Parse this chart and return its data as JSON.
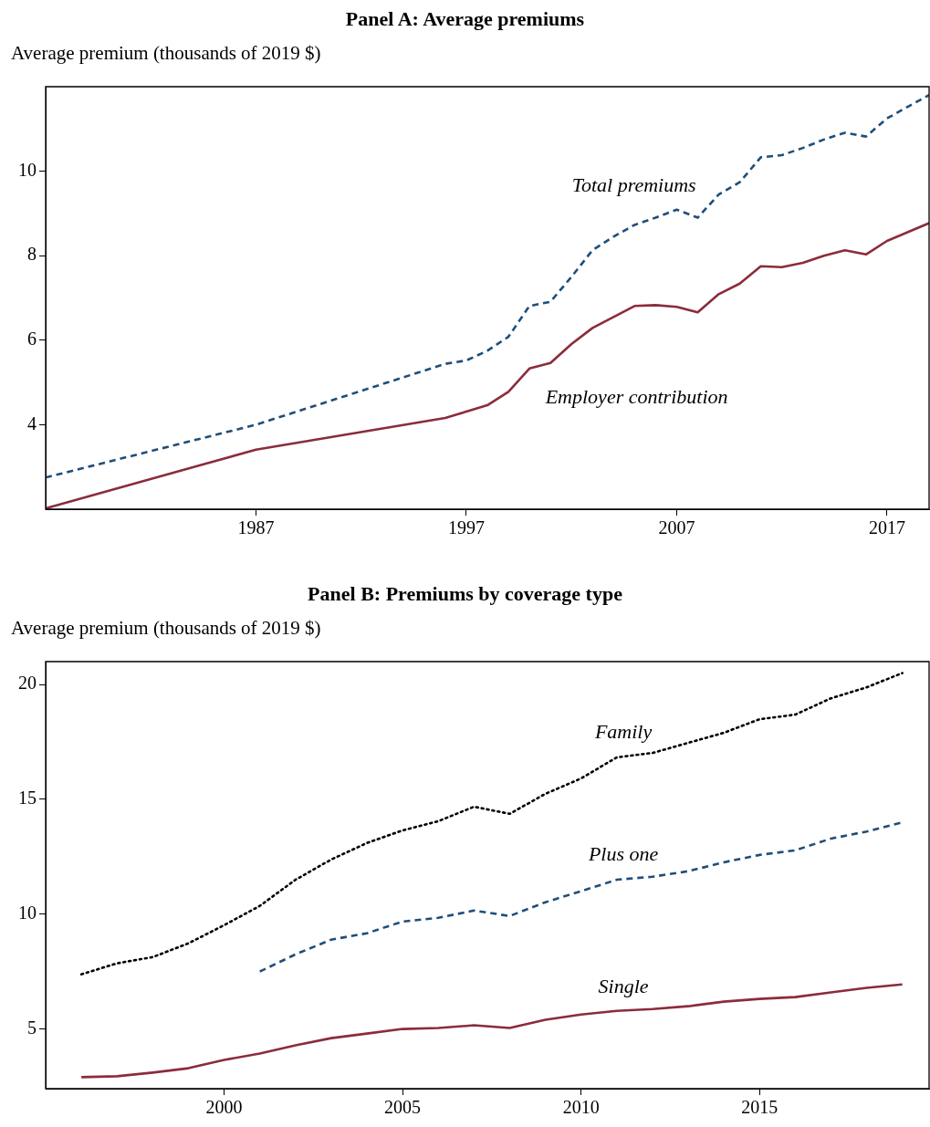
{
  "chart_data": [
    {
      "type": "line",
      "title": "Panel A: Average premiums",
      "ylabel": "Average premium (thousands of 2019 $)",
      "xlim": [
        1977,
        2019
      ],
      "xticks": [
        1987,
        1997,
        2007,
        2017
      ],
      "ylim": [
        2,
        12
      ],
      "yticks": [
        4,
        6,
        8,
        10
      ],
      "grid": false,
      "legend": false,
      "marker": "none",
      "series": [
        {
          "name": "Total premiums",
          "color": "#1f4e79",
          "line_style": "dashed",
          "x": [
            1977,
            1987,
            1996,
            1997,
            1998,
            1999,
            2000,
            2001,
            2002,
            2003,
            2004,
            2005,
            2006,
            2007,
            2008,
            2009,
            2010,
            2011,
            2012,
            2013,
            2014,
            2015,
            2016,
            2017,
            2018,
            2019
          ],
          "values": [
            2.75,
            4.0,
            5.44,
            5.52,
            5.75,
            6.08,
            6.81,
            6.91,
            7.5,
            8.13,
            8.45,
            8.73,
            8.9,
            9.09,
            8.9,
            9.45,
            9.74,
            10.33,
            10.38,
            10.55,
            10.75,
            10.91,
            10.82,
            11.25,
            11.53,
            11.8
          ]
        },
        {
          "name": "Employer contribution",
          "color": "#8b2c3a",
          "line_style": "solid",
          "x": [
            1977,
            1987,
            1996,
            1997,
            1998,
            1999,
            2000,
            2001,
            2002,
            2003,
            2004,
            2005,
            2006,
            2007,
            2008,
            2009,
            2010,
            2011,
            2012,
            2013,
            2014,
            2015,
            2016,
            2017,
            2018,
            2019
          ],
          "values": [
            2.02,
            3.41,
            4.16,
            4.31,
            4.46,
            4.78,
            5.33,
            5.46,
            5.91,
            6.29,
            6.55,
            6.81,
            6.83,
            6.79,
            6.66,
            7.09,
            7.34,
            7.75,
            7.73,
            7.83,
            8.0,
            8.13,
            8.03,
            8.35,
            8.56,
            8.77
          ]
        }
      ]
    },
    {
      "type": "line",
      "title": "Panel B: Premiums by coverage type",
      "ylabel": "Average premium (thousands of 2019 $)",
      "xlim": [
        1995,
        2019.75
      ],
      "xticks": [
        2000,
        2005,
        2010,
        2015
      ],
      "ylim": [
        2.4,
        21
      ],
      "yticks": [
        5,
        10,
        15,
        20
      ],
      "grid": false,
      "legend": false,
      "marker": "none",
      "series": [
        {
          "name": "Family",
          "color": "#000000",
          "line_style": "dotted",
          "x": [
            1996,
            1997,
            1998,
            1999,
            2000,
            2001,
            2002,
            2003,
            2004,
            2005,
            2006,
            2007,
            2008,
            2009,
            2010,
            2011,
            2012,
            2013,
            2014,
            2015,
            2016,
            2017,
            2018,
            2019
          ],
          "values": [
            7.38,
            7.86,
            8.13,
            8.73,
            9.52,
            10.36,
            11.5,
            12.38,
            13.1,
            13.65,
            14.05,
            14.68,
            14.37,
            15.24,
            15.91,
            16.83,
            17.02,
            17.46,
            17.9,
            18.49,
            18.69,
            19.4,
            19.88,
            20.5
          ]
        },
        {
          "name": "Plus one",
          "color": "#1f4e79",
          "line_style": "dashed",
          "x": [
            2001,
            2002,
            2003,
            2004,
            2005,
            2006,
            2007,
            2008,
            2009,
            2010,
            2011,
            2012,
            2013,
            2014,
            2015,
            2016,
            2017,
            2018,
            2019
          ],
          "values": [
            7.5,
            8.25,
            8.89,
            9.17,
            9.68,
            9.84,
            10.16,
            9.92,
            10.52,
            11.0,
            11.5,
            11.63,
            11.87,
            12.26,
            12.58,
            12.78,
            13.29,
            13.6,
            14.0
          ]
        },
        {
          "name": "Single",
          "color": "#8b2c3a",
          "line_style": "solid",
          "x": [
            1996,
            1997,
            1998,
            1999,
            2000,
            2001,
            2002,
            2003,
            2004,
            2005,
            2006,
            2007,
            2008,
            2009,
            2010,
            2011,
            2012,
            2013,
            2014,
            2015,
            2016,
            2017,
            2018,
            2019
          ],
          "values": [
            2.9,
            2.94,
            3.1,
            3.29,
            3.65,
            3.93,
            4.29,
            4.6,
            4.8,
            5.0,
            5.04,
            5.16,
            5.04,
            5.4,
            5.63,
            5.79,
            5.87,
            5.99,
            6.19,
            6.31,
            6.39,
            6.59,
            6.79,
            6.94
          ]
        }
      ]
    }
  ]
}
